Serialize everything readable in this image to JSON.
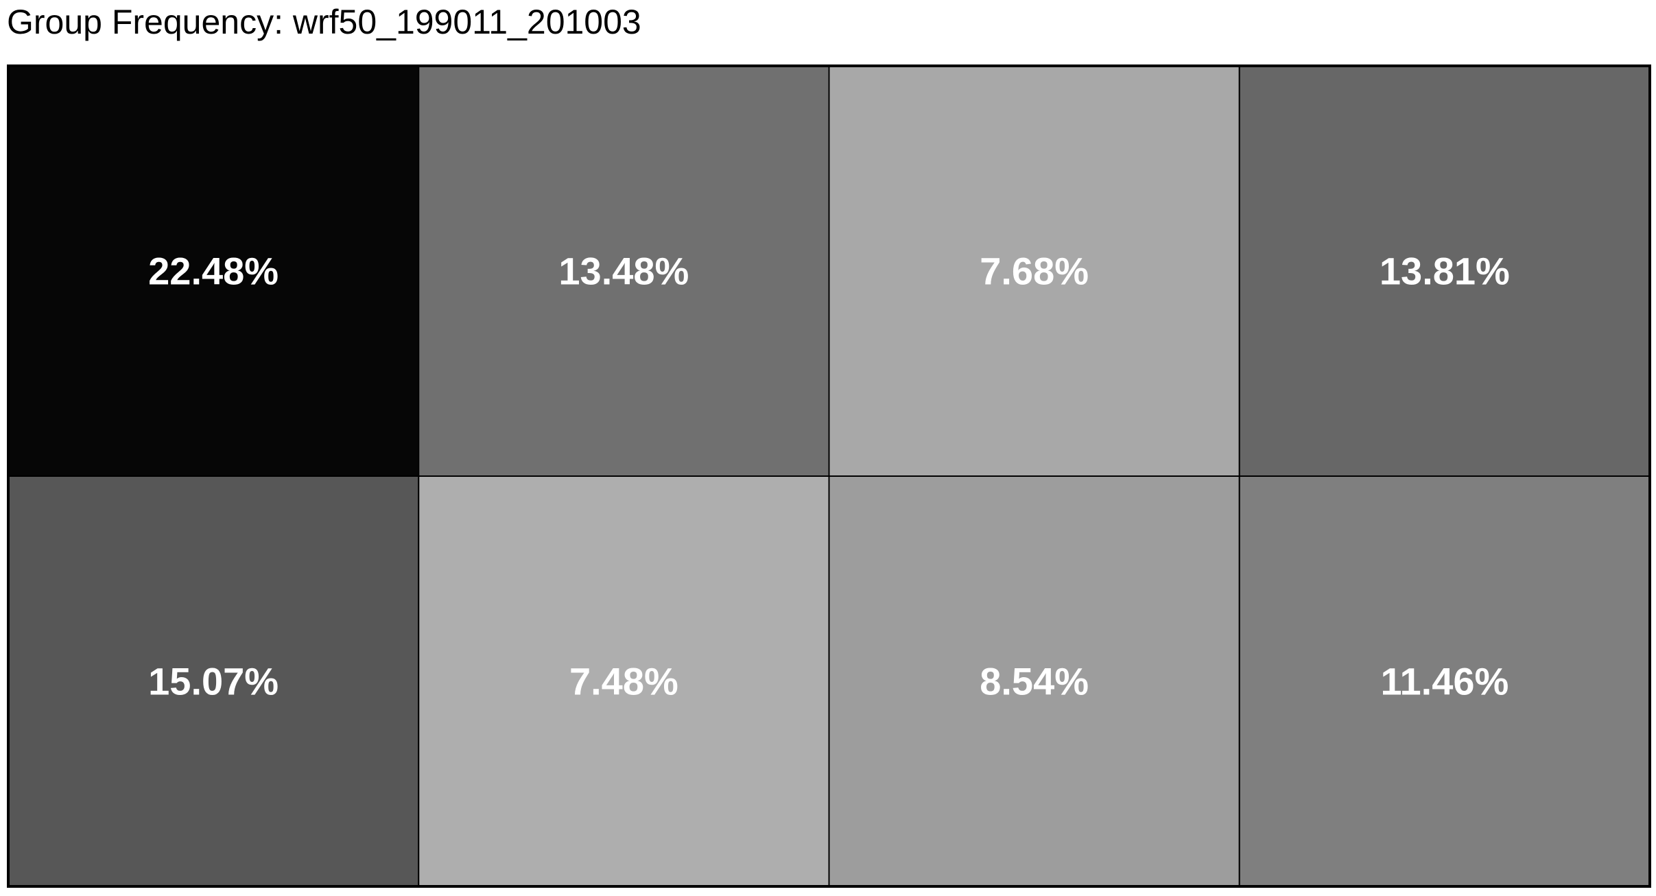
{
  "chart_data": {
    "type": "heatmap",
    "title": "Group Frequency: wrf50_199011_201003",
    "rows": 2,
    "cols": 4,
    "cells": [
      {
        "value": 22.48,
        "label": "22.48%",
        "color": "#060606"
      },
      {
        "value": 13.48,
        "label": "13.48%",
        "color": "#707070"
      },
      {
        "value": 7.68,
        "label": "7.68%",
        "color": "#a8a8a8"
      },
      {
        "value": 13.81,
        "label": "13.81%",
        "color": "#676767"
      },
      {
        "value": 15.07,
        "label": "15.07%",
        "color": "#575757"
      },
      {
        "value": 7.48,
        "label": "7.48%",
        "color": "#aeaeae"
      },
      {
        "value": 8.54,
        "label": "8.54%",
        "color": "#9d9d9d"
      },
      {
        "value": 11.46,
        "label": "11.46%",
        "color": "#7f7f7f"
      }
    ],
    "grid": true,
    "legend": "none"
  }
}
